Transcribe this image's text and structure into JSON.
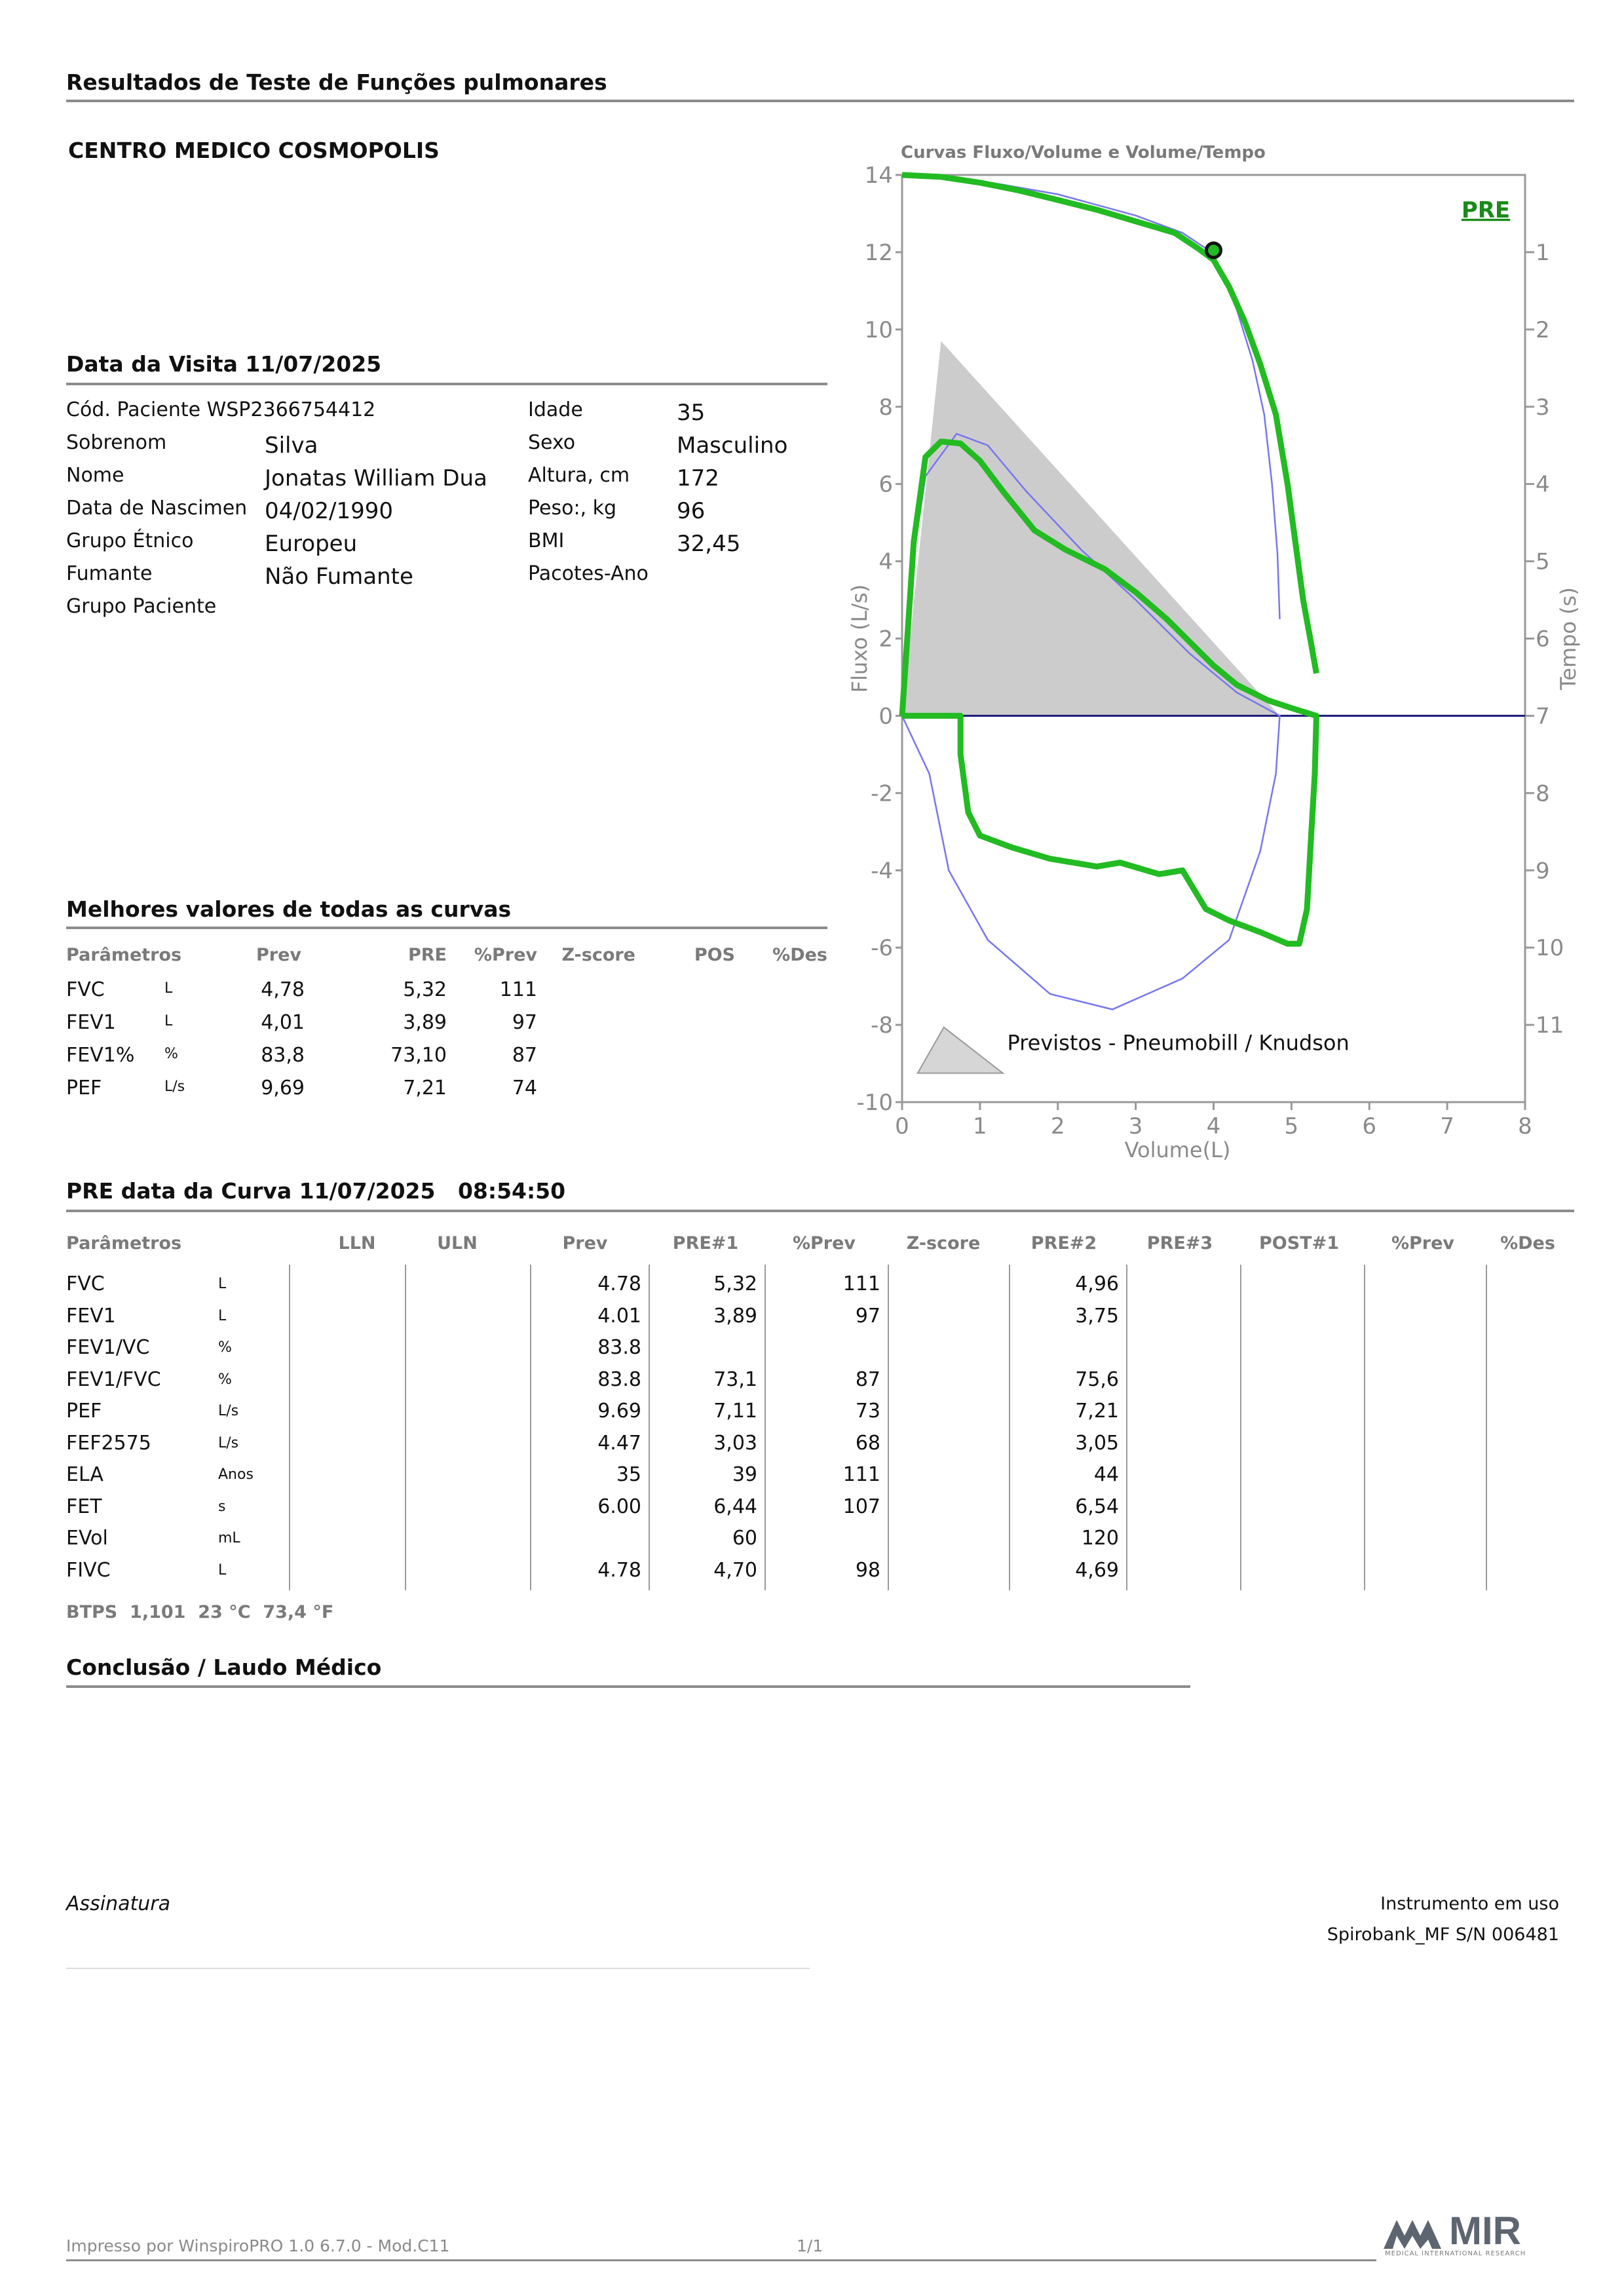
{
  "report": {
    "title": "Resultados de Teste de Funções pulmonares",
    "clinic": "CENTRO MEDICO COSMOPOLIS"
  },
  "visit": {
    "heading": "Data da Visita 11/07/2025",
    "rows": [
      {
        "label": "Cód. Paciente WSP2366754412",
        "value": "",
        "label2": "Idade",
        "value2": "35"
      },
      {
        "label": "Sobrenom",
        "value": "Silva",
        "label2": "Sexo",
        "value2": "Masculino"
      },
      {
        "label": "Nome",
        "value": "Jonatas William Dua",
        "label2": "Altura, cm",
        "value2": "172"
      },
      {
        "label": "Data de Nascimen",
        "value": "04/02/1990",
        "label2": "Peso:, kg",
        "value2": "96"
      },
      {
        "label": "Grupo Étnico",
        "value": "Europeu",
        "label2": "BMI",
        "value2": "32,45"
      },
      {
        "label": "Fumante",
        "value": "Não Fumante",
        "label2": "Pacotes-Ano",
        "value2": ""
      },
      {
        "label": "Grupo Paciente",
        "value": "",
        "label2": "",
        "value2": ""
      }
    ]
  },
  "best": {
    "heading": "Melhores valores de todas as curvas",
    "headers": [
      "Parâmetros",
      "Prev",
      "PRE",
      "%Prev",
      "Z-score",
      "POS",
      "%Des"
    ],
    "rows": [
      {
        "param": "FVC",
        "unit": "L",
        "prev": "4,78",
        "pre": "5,32",
        "pct": "111"
      },
      {
        "param": "FEV1",
        "unit": "L",
        "prev": "4,01",
        "pre": "3,89",
        "pct": "97"
      },
      {
        "param": "FEV1%",
        "unit": "%",
        "prev": "83,8",
        "pre": "73,10",
        "pct": "87"
      },
      {
        "param": "PEF",
        "unit": "L/s",
        "prev": "9,69",
        "pre": "7,21",
        "pct": "74"
      }
    ]
  },
  "curve": {
    "heading": "PRE data da Curva 11/07/2025   08:54:50",
    "headers": [
      "Parâmetros",
      "LLN",
      "ULN",
      "Prev",
      "PRE#1",
      "%Prev",
      "Z-score",
      "PRE#2",
      "PRE#3",
      "POST#1",
      "%Prev",
      "%Des"
    ],
    "rows": [
      {
        "param": "FVC",
        "unit": "L",
        "prev": "4.78",
        "pre1": "5,32",
        "pct": "111",
        "pre2": "4,96"
      },
      {
        "param": "FEV1",
        "unit": "L",
        "prev": "4.01",
        "pre1": "3,89",
        "pct": "97",
        "pre2": "3,75"
      },
      {
        "param": "FEV1/VC",
        "unit": "%",
        "prev": "83.8",
        "pre1": "",
        "pct": "",
        "pre2": ""
      },
      {
        "param": "FEV1/FVC",
        "unit": "%",
        "prev": "83.8",
        "pre1": "73,1",
        "pct": "87",
        "pre2": "75,6"
      },
      {
        "param": "PEF",
        "unit": "L/s",
        "prev": "9.69",
        "pre1": "7,11",
        "pct": "73",
        "pre2": "7,21"
      },
      {
        "param": "FEF2575",
        "unit": "L/s",
        "prev": "4.47",
        "pre1": "3,03",
        "pct": "68",
        "pre2": "3,05"
      },
      {
        "param": "ELA",
        "unit": "Anos",
        "prev": "35",
        "pre1": "39",
        "pct": "111",
        "pre2": "44"
      },
      {
        "param": "FET",
        "unit": "s",
        "prev": "6.00",
        "pre1": "6,44",
        "pct": "107",
        "pre2": "6,54"
      },
      {
        "param": "EVol",
        "unit": "mL",
        "prev": "",
        "pre1": "60",
        "pct": "",
        "pre2": "120"
      },
      {
        "param": "FIVC",
        "unit": "L",
        "prev": "4.78",
        "pre1": "4,70",
        "pct": "98",
        "pre2": "4,69"
      }
    ],
    "btps": "BTPS  1,101  23 °C  73,4 °F"
  },
  "conclusion": {
    "heading": "Conclusão / Laudo Médico"
  },
  "signature": {
    "label": "Assinatura",
    "instrument_label": "Instrumento em uso",
    "instrument": "Spirobank_MF S/N 006481"
  },
  "footer": {
    "printed": "Impresso por WinspiroPRO 1.0 6.7.0 - Mod.C11",
    "page": "1/1",
    "logo": "MIR",
    "logo_sub": "MEDICAL INTERNATIONAL RESEARCH"
  },
  "chart_data": {
    "type": "line",
    "title": "Curvas Fluxo/Volume e Volume/Tempo",
    "xlabel": "Volume(L)",
    "ylabel": "Fluxo (L/s)",
    "y2label": "Tempo (s)",
    "xlim": [
      0,
      8
    ],
    "ylim": [
      -10,
      14
    ],
    "y2lim": [
      0,
      11
    ],
    "xticks": [
      "0",
      "1",
      "2",
      "3",
      "4",
      "5",
      "6",
      "7",
      "8"
    ],
    "yticks": [
      "14",
      "12",
      "10",
      "8",
      "6",
      "4",
      "2",
      "0",
      "-2",
      "-4",
      "-6",
      "-8",
      "-10"
    ],
    "y2ticks": [
      "1",
      "2",
      "3",
      "4",
      "5",
      "6",
      "7",
      "8",
      "9",
      "10",
      "11"
    ],
    "legend_tag": "PRE",
    "legend_note": "Previstos - Pneumobill / Knudson",
    "colors": {
      "measured": "#22bb22",
      "predicted": "#7777ee",
      "predicted_area": "#cccccc",
      "zero_line": "#1a1a7a",
      "axis": "#999999"
    },
    "predicted_area": [
      [
        0,
        0
      ],
      [
        0.5,
        9.7
      ],
      [
        4.85,
        0
      ]
    ],
    "volume_time_measured": [
      [
        0,
        14
      ],
      [
        0.5,
        13.95
      ],
      [
        1,
        13.8
      ],
      [
        1.5,
        13.6
      ],
      [
        2,
        13.35
      ],
      [
        2.5,
        13.1
      ],
      [
        3,
        12.8
      ],
      [
        3.5,
        12.5
      ],
      [
        3.8,
        12.1
      ],
      [
        4.0,
        11.8
      ],
      [
        4.2,
        11.1
      ],
      [
        4.4,
        10.2
      ],
      [
        4.6,
        9.1
      ],
      [
        4.8,
        7.8
      ],
      [
        4.95,
        6
      ],
      [
        5.05,
        4.5
      ],
      [
        5.15,
        3
      ],
      [
        5.25,
        1.9
      ],
      [
        5.32,
        1.1
      ]
    ],
    "volume_time_predicted": [
      [
        0,
        14
      ],
      [
        1,
        13.85
      ],
      [
        2,
        13.5
      ],
      [
        3,
        12.95
      ],
      [
        3.6,
        12.5
      ],
      [
        3.9,
        12.1
      ],
      [
        4.1,
        11.5
      ],
      [
        4.3,
        10.5
      ],
      [
        4.5,
        9.2
      ],
      [
        4.65,
        7.8
      ],
      [
        4.75,
        6
      ],
      [
        4.82,
        4.2
      ],
      [
        4.85,
        2.5
      ]
    ],
    "fvc_marker": [
      4.0,
      12.05
    ],
    "flow_volume_measured": [
      [
        0,
        0
      ],
      [
        0.05,
        1.5
      ],
      [
        0.15,
        4.5
      ],
      [
        0.3,
        6.7
      ],
      [
        0.5,
        7.1
      ],
      [
        0.75,
        7.05
      ],
      [
        1.0,
        6.6
      ],
      [
        1.3,
        5.8
      ],
      [
        1.7,
        4.8
      ],
      [
        2.1,
        4.3
      ],
      [
        2.6,
        3.8
      ],
      [
        3.0,
        3.2
      ],
      [
        3.4,
        2.5
      ],
      [
        3.7,
        1.9
      ],
      [
        4.0,
        1.3
      ],
      [
        4.3,
        0.8
      ],
      [
        4.7,
        0.4
      ],
      [
        5.0,
        0.2
      ],
      [
        5.32,
        0
      ],
      [
        5.3,
        -1.5
      ],
      [
        5.25,
        -3.2
      ],
      [
        5.2,
        -5.0
      ],
      [
        5.1,
        -5.9
      ],
      [
        4.95,
        -5.9
      ],
      [
        4.6,
        -5.6
      ],
      [
        4.2,
        -5.3
      ],
      [
        3.9,
        -5.0
      ],
      [
        3.6,
        -4.0
      ],
      [
        3.3,
        -4.1
      ],
      [
        2.8,
        -3.8
      ],
      [
        2.5,
        -3.9
      ],
      [
        1.9,
        -3.7
      ],
      [
        1.4,
        -3.4
      ],
      [
        1.0,
        -3.1
      ],
      [
        0.85,
        -2.5
      ],
      [
        0.75,
        -1.0
      ],
      [
        0.75,
        0
      ],
      [
        0.5,
        0
      ],
      [
        0,
        0
      ]
    ],
    "flow_volume_predicted": [
      [
        0,
        0
      ],
      [
        0.1,
        3.5
      ],
      [
        0.3,
        6.2
      ],
      [
        0.7,
        7.3
      ],
      [
        1.1,
        7.0
      ],
      [
        1.6,
        5.8
      ],
      [
        2.3,
        4.3
      ],
      [
        3.0,
        3.0
      ],
      [
        3.7,
        1.6
      ],
      [
        4.3,
        0.6
      ],
      [
        4.85,
        0
      ],
      [
        4.8,
        -1.5
      ],
      [
        4.6,
        -3.5
      ],
      [
        4.2,
        -5.8
      ],
      [
        3.6,
        -6.8
      ],
      [
        2.7,
        -7.6
      ],
      [
        1.9,
        -7.2
      ],
      [
        1.1,
        -5.8
      ],
      [
        0.6,
        -4.0
      ],
      [
        0.35,
        -1.5
      ],
      [
        0,
        0
      ]
    ]
  }
}
